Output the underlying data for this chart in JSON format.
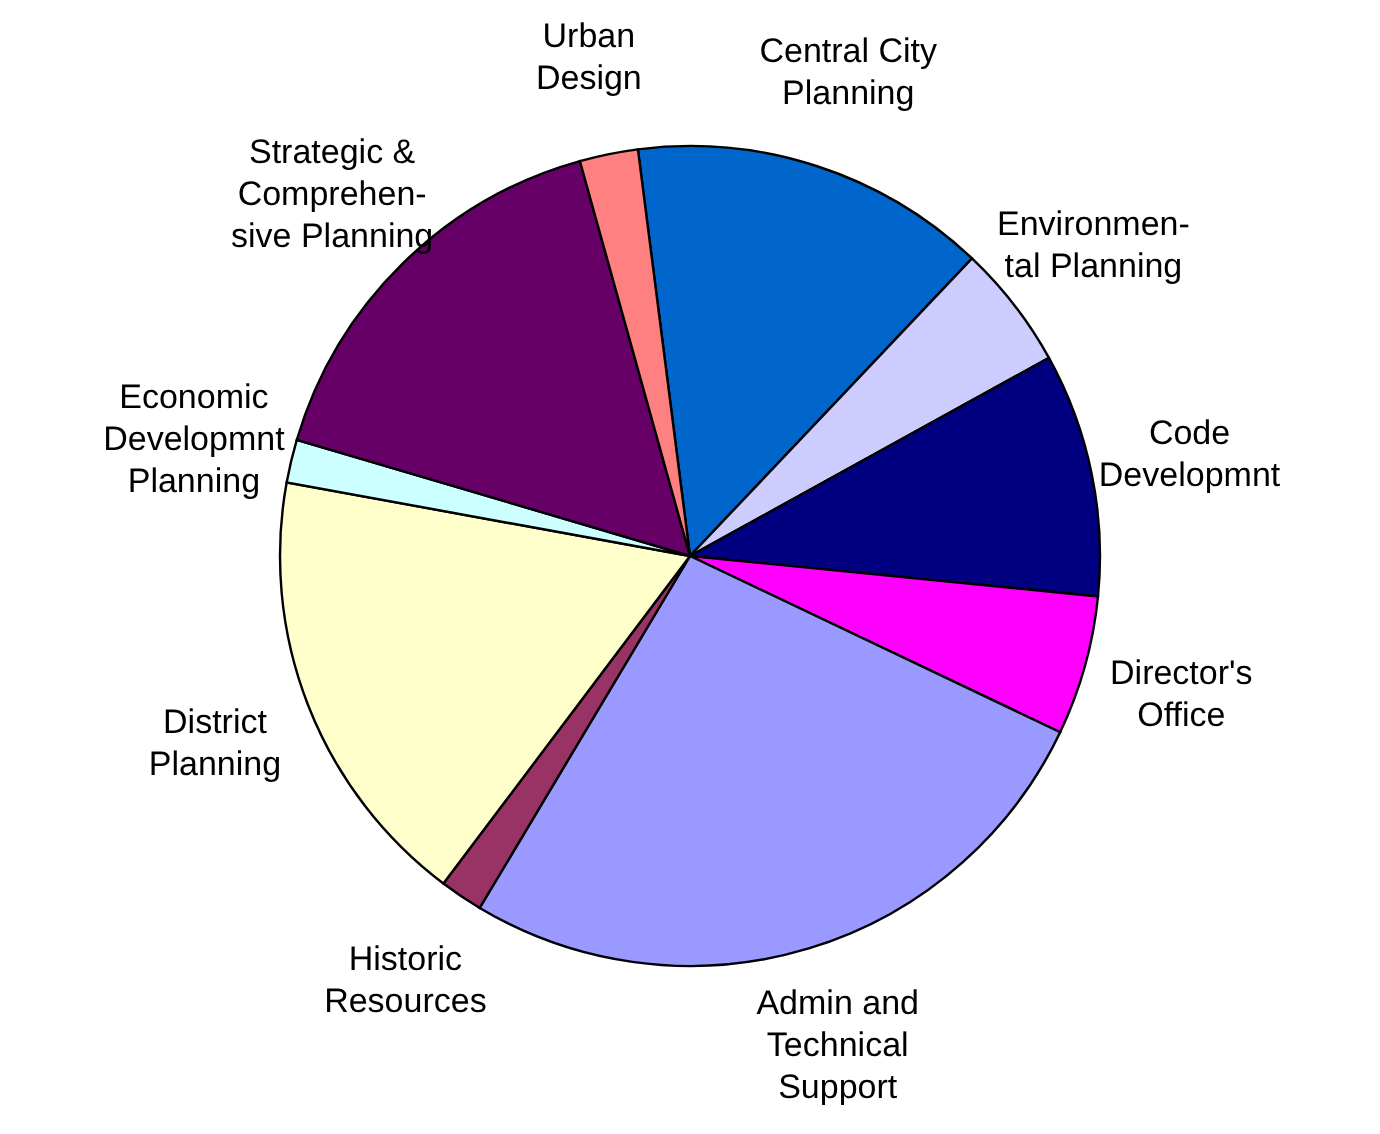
{
  "chart_data": {
    "type": "pie",
    "categories": [
      "Central City\nPlanning",
      "Environmen-\ntal Planning",
      "Code\nDevelopmnt",
      "Director's\nOffice",
      "Admin and\nTechnical\nSupport",
      "Historic\nResources",
      "District\nPlanning",
      "Economic\nDevelopmnt\nPlanning",
      "Strategic &\nComprehen-\nsive Planning",
      "Urban\nDesign"
    ],
    "values": [
      14.1,
      4.9,
      9.6,
      5.5,
      26.5,
      1.7,
      17.6,
      1.7,
      16.1,
      2.3
    ],
    "colors": [
      "#0066cc",
      "#ccccff",
      "#000080",
      "#ff00ff",
      "#9999ff",
      "#993366",
      "#ffffcc",
      "#ccffff",
      "#660066",
      "#ff8080"
    ]
  }
}
